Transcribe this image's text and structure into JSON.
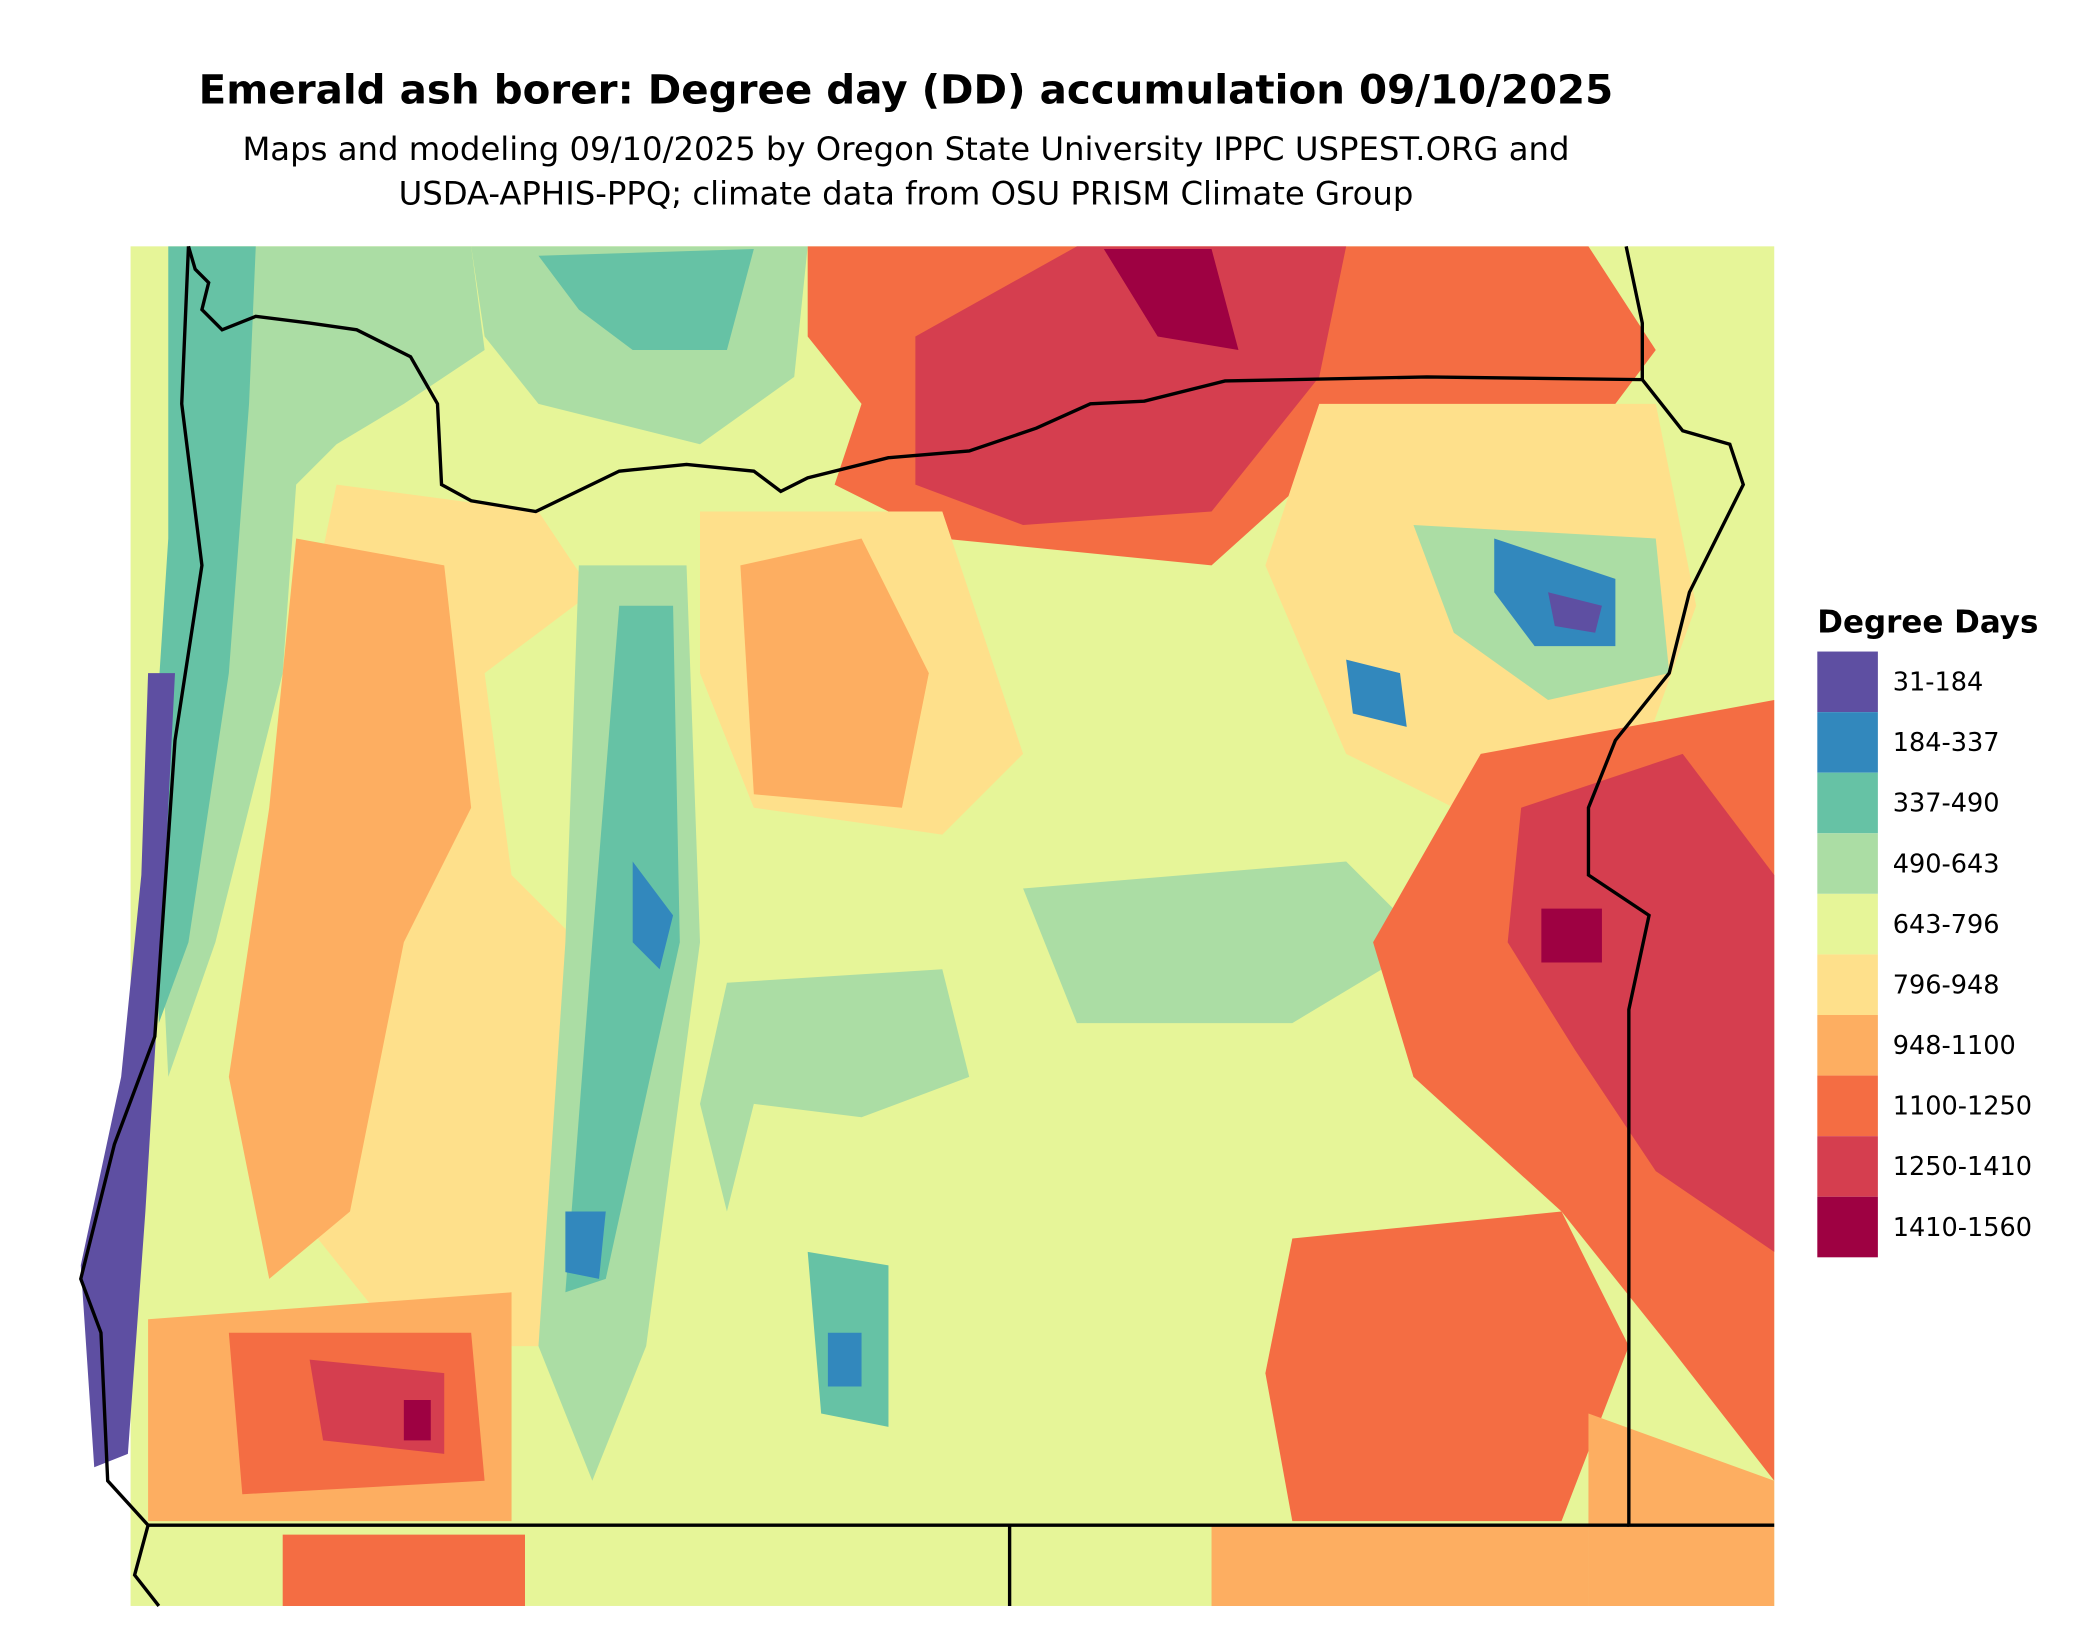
{
  "title": "Emerald ash borer: Degree day (DD) accumulation 09/10/2025",
  "subtitle": [
    "Maps and modeling 09/10/2025 by Oregon State University IPPC USPEST.ORG and",
    "USDA-APHIS-PPQ; climate data from OSU PRISM Climate Group"
  ],
  "legend": {
    "title": "Degree Days",
    "items": [
      {
        "label": "31-184",
        "color": "#5e4fa2"
      },
      {
        "label": "184-337",
        "color": "#3288bd"
      },
      {
        "label": "337-490",
        "color": "#66c2a5"
      },
      {
        "label": "490-643",
        "color": "#abdda4"
      },
      {
        "label": "643-796",
        "color": "#e6f598"
      },
      {
        "label": "796-948",
        "color": "#fee08b"
      },
      {
        "label": "948-1100",
        "color": "#fdae61"
      },
      {
        "label": "1100-1250",
        "color": "#f46d43"
      },
      {
        "label": "1250-1410",
        "color": "#d53e4f"
      },
      {
        "label": "1410-1560",
        "color": "#9e0142"
      }
    ]
  }
}
